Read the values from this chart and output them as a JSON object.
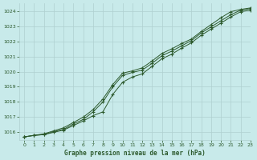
{
  "title": "Graphe pression niveau de la mer (hPa)",
  "bg_color": "#c8eaea",
  "grid_color": "#afd0d0",
  "line_color": "#2d5a2d",
  "xlim": [
    -0.5,
    23
  ],
  "ylim": [
    1015.5,
    1024.5
  ],
  "yticks": [
    1016,
    1017,
    1018,
    1019,
    1020,
    1021,
    1022,
    1023,
    1024
  ],
  "xticks": [
    0,
    1,
    2,
    3,
    4,
    5,
    6,
    7,
    8,
    9,
    10,
    11,
    12,
    13,
    14,
    15,
    16,
    17,
    18,
    19,
    20,
    21,
    22,
    23
  ],
  "series1": [
    1015.7,
    1015.8,
    1015.85,
    1016.0,
    1016.15,
    1016.45,
    1016.75,
    1017.1,
    1017.35,
    1018.5,
    1019.3,
    1019.65,
    1019.85,
    1020.35,
    1020.85,
    1021.15,
    1021.55,
    1021.9,
    1022.4,
    1022.8,
    1023.2,
    1023.6,
    1023.95,
    1024.05
  ],
  "series2": [
    1015.7,
    1015.8,
    1015.85,
    1016.05,
    1016.2,
    1016.55,
    1016.85,
    1017.35,
    1018.0,
    1019.0,
    1019.75,
    1019.95,
    1020.1,
    1020.55,
    1021.05,
    1021.35,
    1021.7,
    1022.05,
    1022.55,
    1022.95,
    1023.35,
    1023.75,
    1024.05,
    1024.15
  ],
  "series3": [
    1015.7,
    1015.8,
    1015.9,
    1016.1,
    1016.3,
    1016.65,
    1017.0,
    1017.5,
    1018.2,
    1019.15,
    1019.9,
    1020.05,
    1020.25,
    1020.7,
    1021.2,
    1021.5,
    1021.85,
    1022.15,
    1022.65,
    1023.1,
    1023.55,
    1023.95,
    1024.1,
    1024.2
  ]
}
